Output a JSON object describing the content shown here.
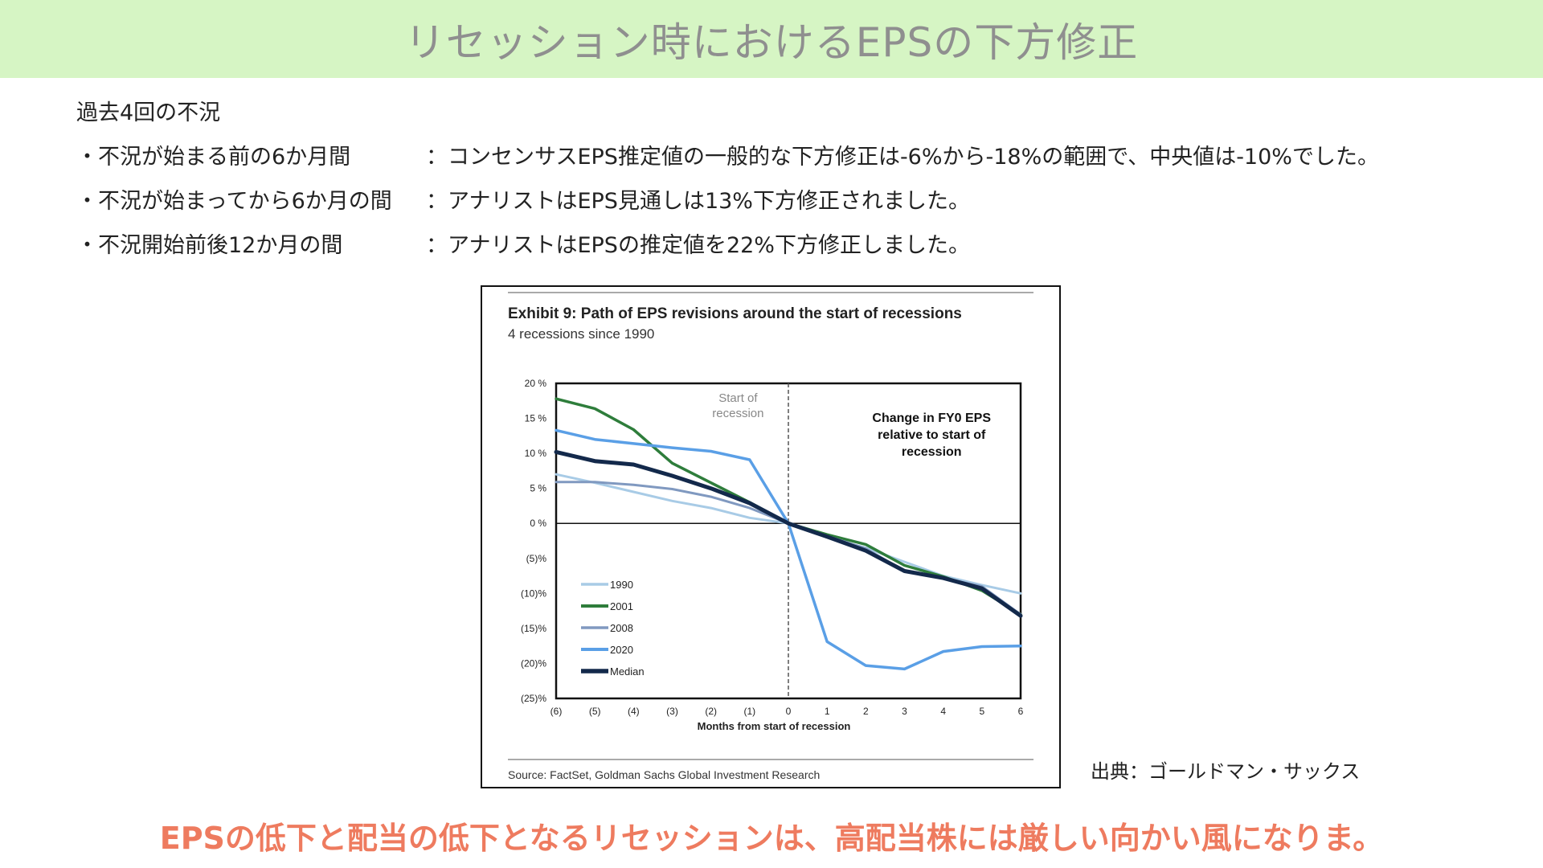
{
  "header": {
    "title": "リセッション時におけるEPSの下方修正"
  },
  "intro": "過去4回の不況",
  "bullets": [
    {
      "label": "・不況が始まる前の6か月間",
      "colon": "：",
      "text": "コンセンサスEPS推定値の一般的な下方修正は-6%から-18%の範囲で、中央値は-10%でした。"
    },
    {
      "label": "・不況が始まってから6か月の間",
      "colon": "：",
      "text": "アナリストはEPS見通しは13%下方修正されました。"
    },
    {
      "label": "・不況開始前後12か月の間",
      "colon": "：",
      "text": "アナリストはEPSの推定値を22%下方修正しました。"
    }
  ],
  "source_label": "出典：ゴールドマン・サックス",
  "footer": "EPSの低下と配当の低下となるリセッションは、高配当株には厳しい向かい風になりま。",
  "chart_data": {
    "type": "line",
    "title": "Exhibit 9: Path of EPS revisions around the start of recessions",
    "subtitle": "4 recessions since 1990",
    "xlabel": "Months from start of recession",
    "ylabel": "",
    "x": [
      -6,
      -5,
      -4,
      -3,
      -2,
      -1,
      0,
      1,
      2,
      3,
      4,
      5,
      6
    ],
    "x_tick_labels": [
      "(6)",
      "(5)",
      "(4)",
      "(3)",
      "(2)",
      "(1)",
      "0",
      "1",
      "2",
      "3",
      "4",
      "5",
      "6"
    ],
    "ylim": [
      -25,
      20
    ],
    "y_ticks": [
      20,
      15,
      10,
      5,
      0,
      -5,
      -10,
      -15,
      -20,
      -25
    ],
    "y_tick_labels": [
      "20 %",
      "15 %",
      "10 %",
      "5 %",
      "0 %",
      "(5)%",
      "(10)%",
      "(15)%",
      "(20)%",
      "(25)%"
    ],
    "annotations": {
      "start_marker": "Start of recession",
      "box_note": "Change in FY0 EPS relative to start of recession"
    },
    "source": "Source: FactSet, Goldman Sachs Global Investment Research",
    "grid": false,
    "legend_position": "bottom-left",
    "series": [
      {
        "name": "1990",
        "color": "#a8cbe6",
        "width": 3,
        "values": [
          7.0,
          5.8,
          4.5,
          3.2,
          2.2,
          0.8,
          0,
          -2.0,
          -3.5,
          -5.5,
          -7.5,
          -8.8,
          -10.0
        ]
      },
      {
        "name": "2001",
        "color": "#2e7d3b",
        "width": 3.5,
        "values": [
          17.8,
          16.4,
          13.4,
          8.6,
          5.8,
          3.0,
          0,
          -1.6,
          -3.0,
          -6.0,
          -7.6,
          -9.6,
          -13.0
        ]
      },
      {
        "name": "2008",
        "color": "#8099c0",
        "width": 3,
        "values": [
          5.9,
          5.9,
          5.5,
          4.9,
          3.8,
          2.2,
          0,
          -1.8,
          -3.6,
          -6.8,
          -7.8,
          -9.0,
          -13.0
        ]
      },
      {
        "name": "2020",
        "color": "#5a9fe6",
        "width": 3.5,
        "values": [
          13.3,
          12.0,
          11.4,
          10.8,
          10.3,
          9.1,
          0,
          -16.9,
          -20.3,
          -20.8,
          -18.3,
          -17.6,
          -17.5
        ]
      },
      {
        "name": "Median",
        "color": "#13294b",
        "width": 5,
        "values": [
          10.2,
          8.9,
          8.4,
          6.8,
          5.0,
          2.9,
          0,
          -1.9,
          -3.9,
          -6.8,
          -7.8,
          -9.3,
          -13.2
        ]
      }
    ]
  }
}
